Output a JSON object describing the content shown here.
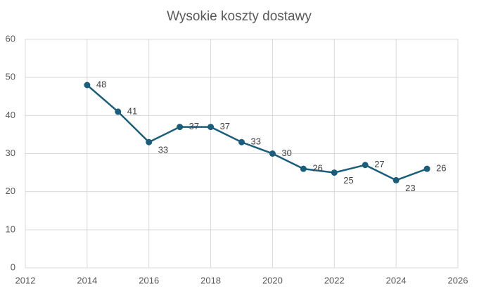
{
  "chart_data": {
    "type": "line",
    "title": "Wysokie koszty dostawy",
    "x": [
      2014,
      2015,
      2016,
      2017,
      2018,
      2019,
      2020,
      2021,
      2022,
      2023,
      2024,
      2025
    ],
    "values": [
      48,
      41,
      33,
      37,
      37,
      33,
      30,
      26,
      25,
      27,
      23,
      26
    ],
    "color": "#1b5e7b",
    "xlim": [
      2012,
      2026
    ],
    "xticks": [
      2012,
      2014,
      2016,
      2018,
      2020,
      2022,
      2024,
      2026
    ],
    "ylim": [
      0,
      60
    ],
    "yticks": [
      0,
      10,
      20,
      30,
      40,
      50,
      60
    ],
    "grid": true
  }
}
